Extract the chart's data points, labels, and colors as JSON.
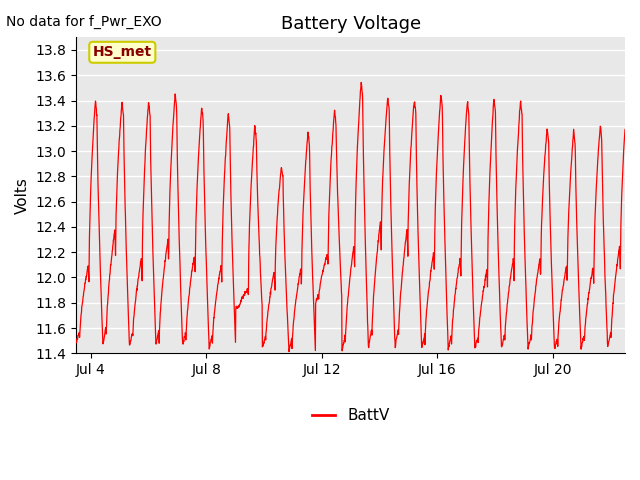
{
  "title": "Battery Voltage",
  "annotation_text": "No data for f_Pwr_EXO",
  "ylabel": "Volts",
  "legend_label": "BattV",
  "line_color": "red",
  "fig_bg_color": "#ffffff",
  "plot_bg_color": "#e8e8e8",
  "ylim": [
    11.4,
    13.9
  ],
  "yticks": [
    11.4,
    11.6,
    11.8,
    12.0,
    12.2,
    12.4,
    12.6,
    12.8,
    13.0,
    13.2,
    13.4,
    13.6,
    13.8
  ],
  "xtick_labels": [
    "Jul 4",
    "Jul 8",
    "Jul 12",
    "Jul 16",
    "Jul 20"
  ],
  "xtick_positions": [
    3,
    7,
    11,
    15,
    19
  ],
  "xlim": [
    2.5,
    21.5
  ],
  "grid_color": "#ffffff",
  "label_box_facecolor": "#ffffcc",
  "label_box_edgecolor": "#cccc00",
  "label_text_color": "#880000",
  "label_text": "HS_met",
  "title_fontsize": 13,
  "axis_fontsize": 11,
  "tick_fontsize": 10,
  "legend_fontsize": 11,
  "annotation_fontsize": 10,
  "cycle_period": 0.92,
  "n_points": 2000,
  "x_start": 2.5,
  "x_end": 21.5
}
